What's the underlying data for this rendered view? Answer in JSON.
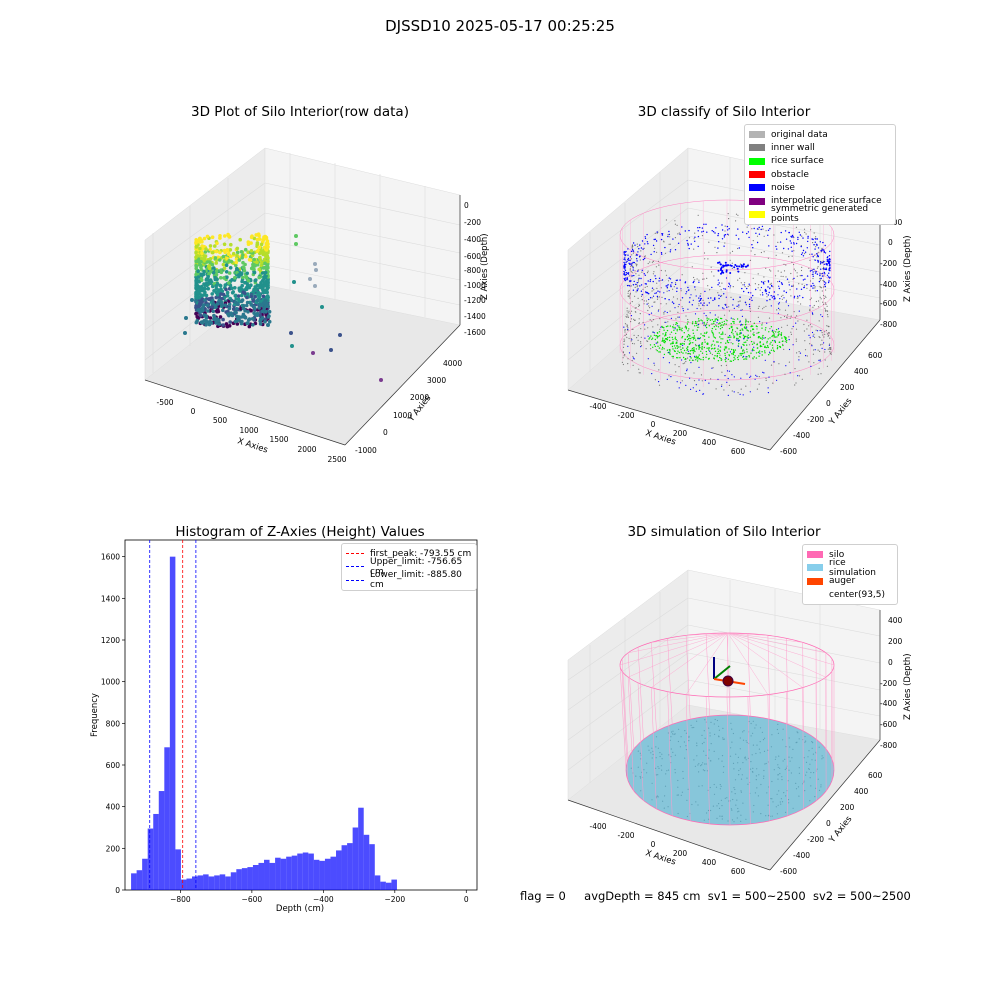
{
  "suptitle": "DJSSD10 2025-05-17 00:25:25",
  "panels": {
    "raw": {
      "title": "3D Plot of Silo Interior(row data)",
      "xlabel": "X Axies",
      "ylabel": "Y Axies",
      "zlabel": "Z Axies (Depth)",
      "xticks": [
        "-500",
        "0",
        "500",
        "1000",
        "1500",
        "2000",
        "2500"
      ],
      "yticks": [
        "-1000",
        "0",
        "1000",
        "2000",
        "3000",
        "4000"
      ],
      "zticks": [
        "0",
        "-200",
        "-400",
        "-600",
        "-800",
        "-1000",
        "-1200",
        "-1400",
        "-1600"
      ]
    },
    "classify": {
      "title": "3D classify of Silo Interior",
      "xlabel": "X Axies",
      "ylabel": "Y Axies",
      "zlabel": "Z Axies (Depth)",
      "xticks": [
        "-400",
        "-200",
        "0",
        "200",
        "400",
        "600"
      ],
      "yticks": [
        "-600",
        "-400",
        "-200",
        "0",
        "200",
        "400",
        "600"
      ],
      "zticks": [
        "200",
        "0",
        "-200",
        "-400",
        "-600",
        "-800"
      ],
      "legend": [
        {
          "label": "original data",
          "color": "#b3b3b3"
        },
        {
          "label": "inner wall",
          "color": "#808080"
        },
        {
          "label": "rice surface",
          "color": "#00ff00"
        },
        {
          "label": "obstacle",
          "color": "#ff0000"
        },
        {
          "label": "noise",
          "color": "#0000ff"
        },
        {
          "label": "interpolated rice surface",
          "color": "#800080"
        },
        {
          "label": "symmetric generated points",
          "color": "#ffff00"
        }
      ]
    },
    "histogram": {
      "title": "Histogram of Z-Axies (Height) Values",
      "legend": [
        {
          "label": "first_peak: -793.55 cm",
          "color": "#ff0000"
        },
        {
          "label": "Upper_limit: -756.65 cm",
          "color": "#0000ff"
        },
        {
          "label": "Lower_limit: -885.80 cm",
          "color": "#0000ff"
        }
      ]
    },
    "simulation": {
      "title": "3D simulation of Silo Interior",
      "xlabel": "X Axies",
      "ylabel": "Y Axies",
      "zlabel": "Z Axies (Depth)",
      "xticks": [
        "-400",
        "-200",
        "0",
        "200",
        "400",
        "600"
      ],
      "yticks": [
        "-600",
        "-400",
        "-200",
        "0",
        "200",
        "400",
        "600"
      ],
      "zticks": [
        "400",
        "200",
        "0",
        "-200",
        "-400",
        "-600",
        "-800"
      ],
      "legend": [
        {
          "label": "silo",
          "color": "#ff69b4"
        },
        {
          "label": "rice simulation",
          "color": "#87ceeb"
        },
        {
          "label": "auger",
          "color": "#ff4500"
        },
        {
          "label": "center(93,5)",
          "color": "#ffffff"
        }
      ]
    }
  },
  "flag_line": {
    "flag": "flag = 0",
    "avg": "avgDepth = 845 cm",
    "sv1": "sv1 = 500~2500",
    "sv2": "sv2 = 500~2500"
  },
  "chart_data": [
    {
      "type": "bar",
      "title": "Histogram of Z-Axies (Height) Values",
      "xlabel": "Depth (cm)",
      "ylabel": "Frequency",
      "xlim": [
        -955,
        30
      ],
      "ylim": [
        0,
        1680
      ],
      "xticks": [
        -800,
        -600,
        -400,
        -200,
        0
      ],
      "yticks": [
        0,
        200,
        400,
        600,
        800,
        1000,
        1200,
        1400,
        1600
      ],
      "bin_width": 15.5,
      "bin_start": -938,
      "values": [
        80,
        95,
        150,
        295,
        365,
        475,
        685,
        1600,
        195,
        50,
        55,
        65,
        70,
        75,
        65,
        70,
        75,
        65,
        85,
        100,
        105,
        110,
        120,
        130,
        145,
        130,
        155,
        150,
        160,
        165,
        175,
        180,
        175,
        145,
        140,
        150,
        160,
        190,
        215,
        225,
        300,
        395,
        265,
        220,
        70,
        40,
        35,
        50
      ],
      "series": [
        {
          "name": "",
          "color": "#0000ff",
          "alpha": 0.7
        }
      ],
      "vlines": [
        {
          "name": "first_peak: -793.55 cm",
          "x": -793.55,
          "color": "#ff0000"
        },
        {
          "name": "Upper_limit: -756.65 cm",
          "x": -756.65,
          "color": "#0000ff"
        },
        {
          "name": "Lower_limit: -885.80 cm",
          "x": -885.8,
          "color": "#0000ff"
        }
      ],
      "legend_position": "top-right",
      "grid": false
    }
  ]
}
